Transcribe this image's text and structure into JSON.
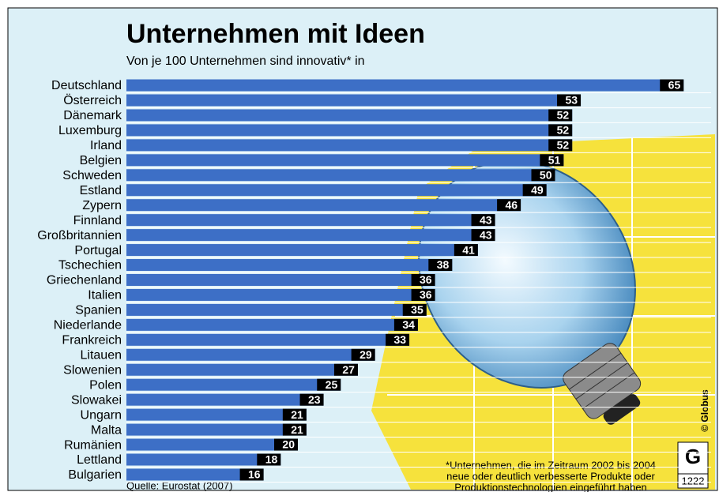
{
  "chart_data": {
    "type": "bar",
    "orientation": "horizontal",
    "title": "Unternehmen mit Ideen",
    "subtitle": "Von je 100 Unternehmen sind innovativ* in",
    "categories": [
      "Deutschland",
      "Österreich",
      "Dänemark",
      "Luxemburg",
      "Irland",
      "Belgien",
      "Schweden",
      "Estland",
      "Zypern",
      "Finnland",
      "Großbritannien",
      "Portugal",
      "Tschechien",
      "Griechenland",
      "Italien",
      "Spanien",
      "Niederlande",
      "Frankreich",
      "Litauen",
      "Slowenien",
      "Polen",
      "Slowakei",
      "Ungarn",
      "Malta",
      "Rumänien",
      "Lettland",
      "Bulgarien"
    ],
    "values": [
      65,
      53,
      52,
      52,
      52,
      51,
      50,
      49,
      46,
      43,
      43,
      41,
      38,
      36,
      36,
      35,
      34,
      33,
      29,
      27,
      25,
      23,
      21,
      21,
      20,
      18,
      16
    ],
    "color": "#3d6fc6",
    "footnote": [
      "*Unternehmen, die im Zeitraum 2002 bis 2004",
      "neue oder deutlich verbesserte Produkte oder",
      "Produktionstechnologien eingeführt haben"
    ],
    "source": "Quelle: Eurostat (2007)",
    "credit": "© Globus",
    "logo": "G",
    "number": "1222"
  }
}
